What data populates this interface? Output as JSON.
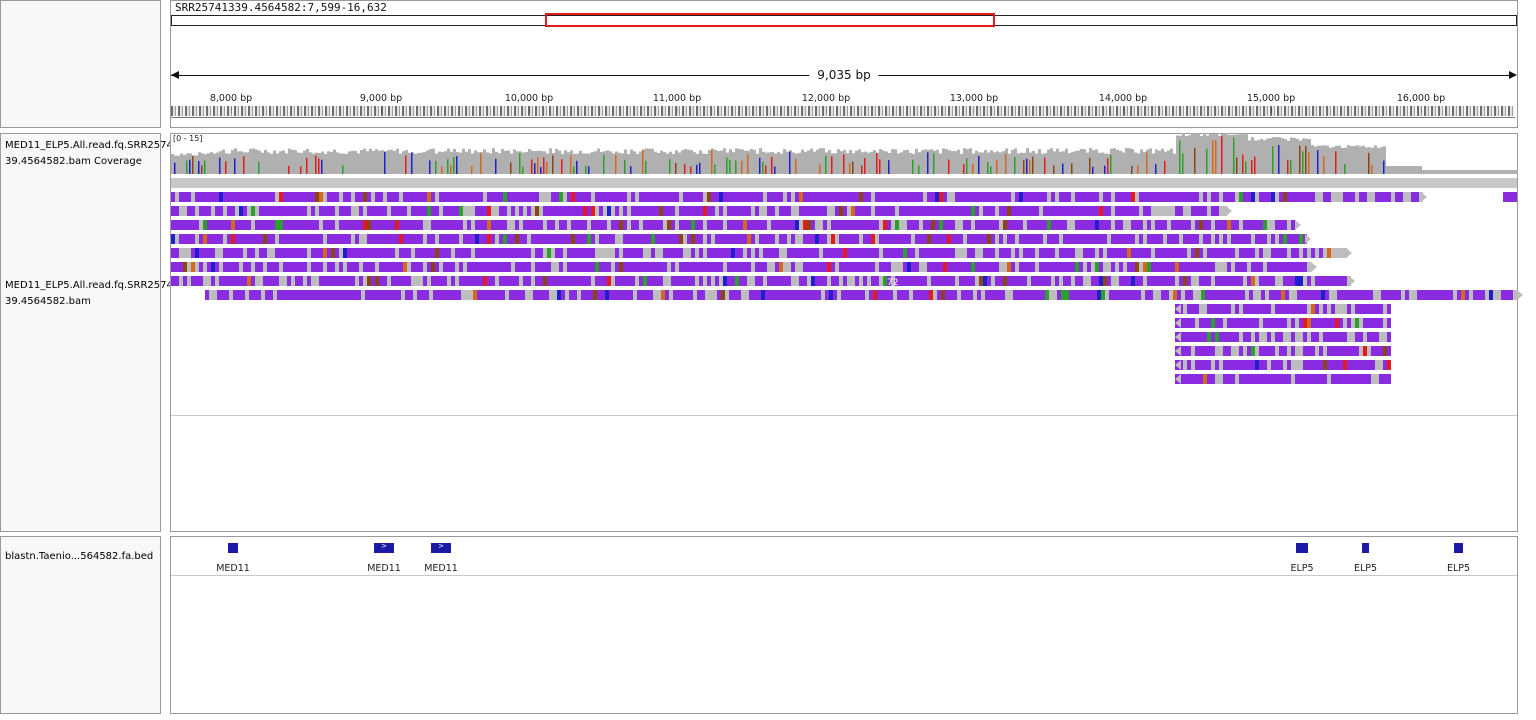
{
  "locus": "SRR25741339.4564582:7,599-16,632",
  "span_label": "9,035 bp",
  "ruler_ticks": [
    "8,000 bp",
    "9,000 bp",
    "10,000 bp",
    "11,000 bp",
    "12,000 bp",
    "13,000 bp",
    "14,000 bp",
    "15,000 bp",
    "16,000 bp"
  ],
  "tracks": {
    "coverage_name_line1": "MED11_ELP5.All.read.fq.SRR2574",
    "coverage_name_line2": "39.4564582.bam Coverage",
    "coverage_range": "[0 - 15]",
    "alignment_name_line1": "MED11_ELP5.All.read.fq.SRR2574",
    "alignment_name_line2": "39.4564582.bam",
    "insertion_label": "72",
    "bed_name": "blastn.Taenio...564582.fa.bed"
  },
  "bed_features": [
    {
      "label": "MED11",
      "strand": ""
    },
    {
      "label": "MED11",
      "strand": ">"
    },
    {
      "label": "MED11",
      "strand": ">"
    },
    {
      "label": "ELP5",
      "strand": ""
    },
    {
      "label": "ELP5",
      "strand": ""
    },
    {
      "label": "ELP5",
      "strand": ""
    }
  ],
  "colors": {
    "read_fill": "#8a2be2",
    "coverage_fill": "#b0b0b0",
    "bed_fill": "#1a1aa6",
    "ideogram_box": "#e31b1b"
  }
}
